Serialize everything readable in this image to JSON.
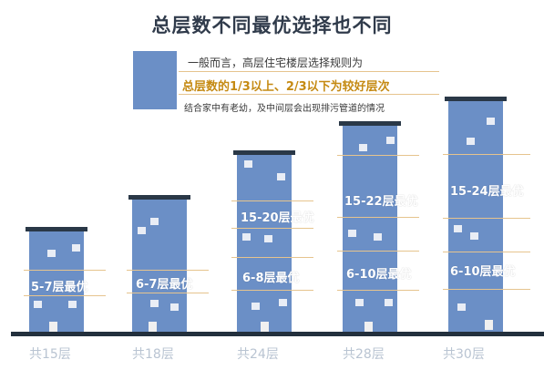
{
  "title": "总层数不同最优选择也不同",
  "legend": {
    "line1": "一般而言，高层住宅楼层选择规则为",
    "line2": "总层数的1/3以上、2/3以下为较好层次",
    "line3": "结合家中有老幼，及中间层会出现排污管道的情况"
  },
  "buildings": [
    {
      "caption": "共15层",
      "labels": [
        "5-7层最优"
      ]
    },
    {
      "caption": "共18层",
      "labels": [
        "6-7层最优"
      ]
    },
    {
      "caption": "共24层",
      "labels": [
        "15-20层最优",
        "6-8层最优"
      ]
    },
    {
      "caption": "共28层",
      "labels": [
        "15-22层最优",
        "6-10层最优"
      ]
    },
    {
      "caption": "共30层",
      "labels": [
        "15-24层最优",
        "6-10层最优"
      ]
    }
  ],
  "colors": {
    "building": "#6b8fc6",
    "roof": "#2a3847",
    "highlight_text": "#c58a13",
    "guide_line": "#e6c48e",
    "caption": "#b9c4d2"
  }
}
